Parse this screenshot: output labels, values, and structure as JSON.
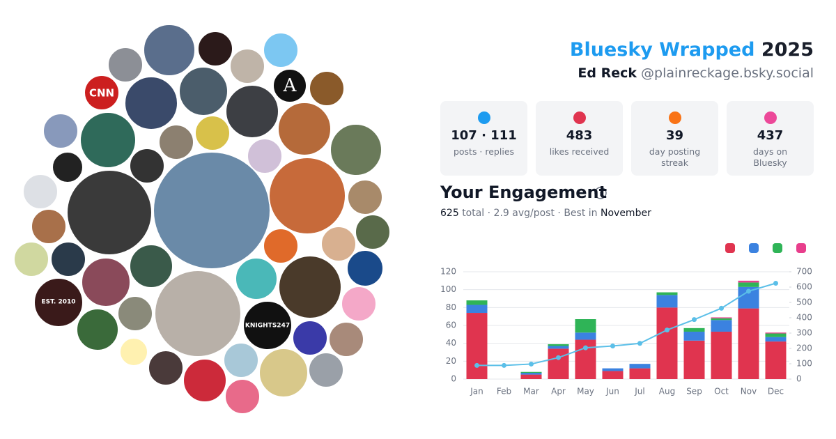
{
  "header": {
    "brand": "Bluesky Wrapped",
    "year": "2025",
    "name": "Ed Reck",
    "handle": "@plainreckage.bsky.social"
  },
  "stats": [
    {
      "value": "107 · 111",
      "label": "posts · replies"
    },
    {
      "value": 483,
      "label": "likes received"
    },
    {
      "value": 39,
      "label": "day posting streak"
    },
    {
      "value": 437,
      "label": "days on Bluesky"
    }
  ],
  "avatar_texts": [
    "CNN",
    "A",
    "EST. 2010",
    "KNIGHTS247"
  ],
  "engagement": {
    "title": "Your Engagement",
    "total": "625",
    "middle": "total · 2.9 avg/post · Best in",
    "best": "November"
  },
  "chart_data": {
    "type": "bar",
    "stacked": true,
    "categories": [
      "Jan",
      "Feb",
      "Mar",
      "Apr",
      "May",
      "Jun",
      "Jul",
      "Aug",
      "Sep",
      "Oct",
      "Nov",
      "Dec"
    ],
    "series": [
      {
        "color": "#e0344f",
        "values": [
          74,
          0,
          5,
          34,
          44,
          9,
          12,
          80,
          43,
          53,
          79,
          42
        ]
      },
      {
        "color": "#3b82e0",
        "values": [
          9,
          0,
          2,
          3,
          8,
          3,
          5,
          14,
          10,
          13,
          24,
          5
        ]
      },
      {
        "color": "#2fb457",
        "values": [
          5,
          0,
          1,
          2,
          15,
          0,
          0,
          3,
          4,
          2,
          5,
          4
        ]
      },
      {
        "color": "#e83e8c",
        "values": [
          0,
          0,
          0,
          0,
          0,
          0,
          0,
          0,
          0,
          1,
          2,
          1
        ]
      },
      {
        "type": "line",
        "axis": "y2",
        "color": "#5bbfe8",
        "values": [
          89,
          89,
          98,
          140,
          204,
          216,
          233,
          320,
          388,
          462,
          573,
          625
        ]
      }
    ],
    "ylim": [
      0,
      120
    ],
    "yticks": [
      0,
      20,
      40,
      60,
      80,
      100,
      120
    ],
    "y2lim": [
      0,
      700
    ],
    "y2ticks": [
      0,
      100,
      200,
      300,
      400,
      500,
      600,
      700
    ],
    "grid": true
  }
}
